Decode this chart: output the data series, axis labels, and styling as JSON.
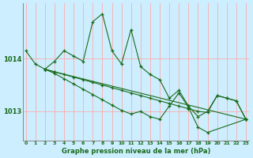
{
  "xlabel": "Graphe pression niveau de la mer (hPa)",
  "bg_color": "#cceeff",
  "grid_color": "#ffaaaa",
  "line_color": "#1a6b1a",
  "marker_color": "#1a6b1a",
  "x_ticks": [
    0,
    1,
    2,
    3,
    4,
    5,
    6,
    7,
    8,
    9,
    10,
    11,
    12,
    13,
    14,
    15,
    16,
    17,
    18,
    19,
    20,
    21,
    22,
    23
  ],
  "ylim": [
    1012.45,
    1015.05
  ],
  "xlim": [
    -0.3,
    23.3
  ],
  "yticks": [
    1013.0,
    1014.0
  ],
  "ytick_labels": [
    "1013",
    "1014"
  ],
  "series": [
    {
      "x": [
        0,
        1,
        2,
        3,
        4,
        5,
        6,
        7,
        8,
        9,
        10,
        11,
        12,
        13,
        14,
        15,
        16,
        17,
        18,
        19,
        20,
        21,
        22,
        23
      ],
      "y": [
        1014.15,
        1013.9,
        1013.8,
        1013.95,
        1014.15,
        1014.05,
        1013.95,
        1014.7,
        1014.85,
        1014.15,
        1013.9,
        1014.55,
        1013.85,
        1013.7,
        1013.6,
        1013.25,
        1013.4,
        1013.1,
        1012.9,
        1013.0,
        1013.3,
        1013.25,
        1013.2,
        1012.85
      ]
    },
    {
      "x": [
        2,
        3,
        23
      ],
      "y": [
        1013.8,
        1013.75,
        1012.85
      ]
    },
    {
      "x": [
        2,
        3,
        4,
        5,
        6,
        7,
        8,
        9,
        10,
        11,
        12,
        13,
        14,
        15,
        16,
        17,
        18,
        19,
        20,
        21,
        22,
        23
      ],
      "y": [
        1013.8,
        1013.75,
        1013.7,
        1013.65,
        1013.6,
        1013.55,
        1013.5,
        1013.45,
        1013.4,
        1013.35,
        1013.3,
        1013.25,
        1013.2,
        1013.15,
        1013.1,
        1013.05,
        1013.0,
        1012.98,
        1013.3,
        1013.25,
        1013.2,
        1012.85
      ]
    },
    {
      "x": [
        2,
        3,
        4,
        5,
        6,
        7,
        8,
        9,
        10,
        11,
        12,
        13,
        14,
        15,
        16,
        17,
        18,
        19,
        23
      ],
      "y": [
        1013.8,
        1013.72,
        1013.62,
        1013.52,
        1013.42,
        1013.32,
        1013.22,
        1013.12,
        1013.02,
        1012.95,
        1013.0,
        1012.9,
        1012.85,
        1013.1,
        1013.35,
        1013.08,
        1012.7,
        1012.6,
        1012.85
      ]
    }
  ]
}
